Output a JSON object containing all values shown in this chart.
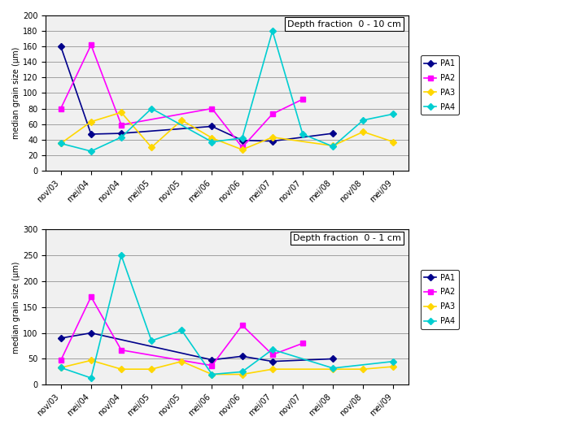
{
  "x_labels": [
    "nov/03",
    "mei/04",
    "nov/04",
    "mei/05",
    "nov/05",
    "mei/06",
    "nov/06",
    "mei/07",
    "nov/07",
    "mei/08",
    "nov/08",
    "mei/09"
  ],
  "top": {
    "title": "Depth fraction  0 - 10 cm",
    "ylim": [
      0,
      200
    ],
    "yticks": [
      0,
      20,
      40,
      60,
      80,
      100,
      120,
      140,
      160,
      180,
      200
    ],
    "PA1": [
      160,
      47,
      48,
      null,
      null,
      57,
      39,
      38,
      null,
      48,
      null,
      null
    ],
    "PA2": [
      80,
      162,
      59,
      null,
      null,
      80,
      30,
      73,
      92,
      null,
      null,
      null
    ],
    "PA3": [
      35,
      63,
      75,
      30,
      65,
      42,
      27,
      43,
      null,
      32,
      50,
      37
    ],
    "PA4": [
      35,
      25,
      43,
      80,
      null,
      37,
      42,
      180,
      47,
      31,
      65,
      73
    ]
  },
  "bottom": {
    "title": "Depth fraction  0 - 1 cm",
    "ylim": [
      0,
      300
    ],
    "yticks": [
      0,
      50,
      100,
      150,
      200,
      250,
      300
    ],
    "PA1": [
      90,
      100,
      null,
      null,
      null,
      48,
      55,
      45,
      null,
      50,
      null,
      null
    ],
    "PA2": [
      47,
      170,
      67,
      null,
      null,
      37,
      115,
      58,
      80,
      null,
      null,
      null
    ],
    "PA3": [
      33,
      47,
      30,
      30,
      45,
      20,
      20,
      30,
      null,
      30,
      30,
      35
    ],
    "PA4": [
      33,
      13,
      250,
      85,
      105,
      20,
      25,
      68,
      null,
      32,
      null,
      45
    ]
  },
  "colors": {
    "PA1": "#00008B",
    "PA2": "#FF00FF",
    "PA3": "#FFD700",
    "PA4": "#00CED1"
  },
  "ylabel": "median grain size (µm)",
  "background": "#f0f0f0"
}
